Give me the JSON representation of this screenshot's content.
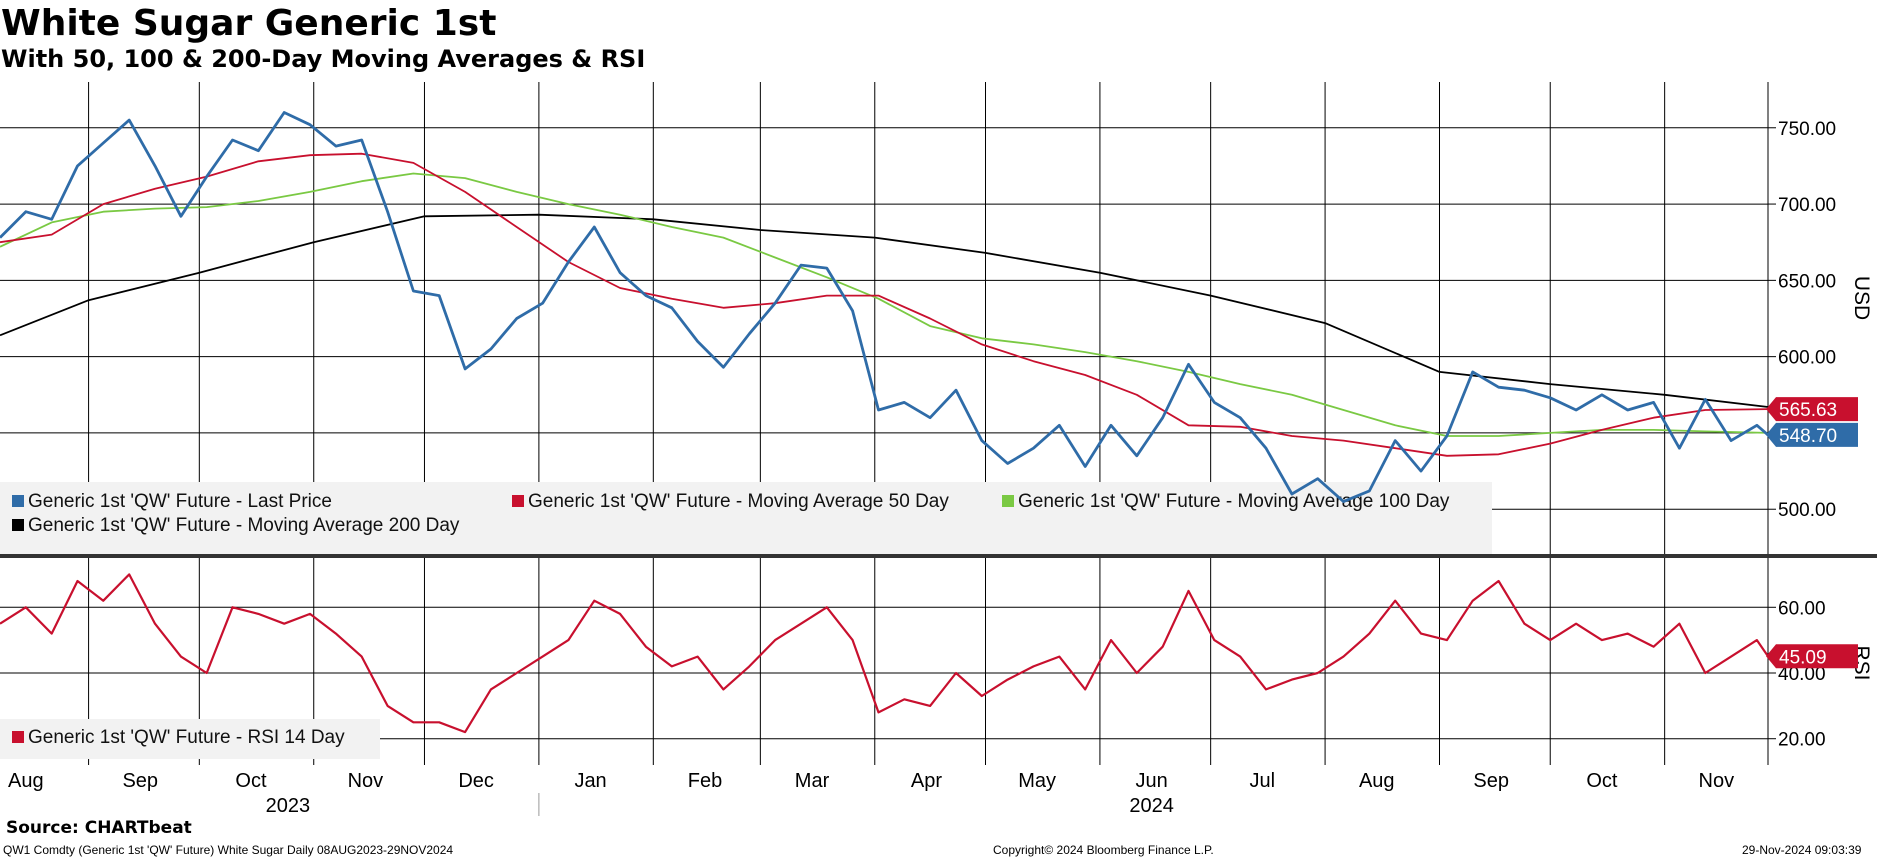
{
  "header": {
    "title": "White Sugar Generic 1st",
    "subtitle": "With 50, 100 & 200-Day Moving Averages & RSI"
  },
  "footer": {
    "source": "Source: CHARTbeat",
    "ticker_line": "QW1 Comdty (Generic 1st 'QW' Future) White Sugar  Daily 08AUG2023-29NOV2024",
    "copyright": "Copyright© 2024 Bloomberg Finance L.P.",
    "timestamp": "29-Nov-2024 09:03:39"
  },
  "chart_data": [
    {
      "type": "line",
      "panel": "price",
      "ylabel": "USD",
      "ylim": [
        470,
        780
      ],
      "yticks": [
        500,
        550,
        600,
        650,
        700,
        750
      ],
      "ytick_labels": [
        "500.00",
        "550.00",
        "600.00",
        "650.00",
        "700.00",
        "750.00"
      ],
      "x_start": "2023-08-08",
      "x_end": "2024-11-29",
      "month_ticks": [
        {
          "label": "Aug",
          "date": "2023-08-15"
        },
        {
          "label": "Sep",
          "date": "2023-09-15"
        },
        {
          "label": "Oct",
          "date": "2023-10-15"
        },
        {
          "label": "Nov",
          "date": "2023-11-15"
        },
        {
          "label": "Dec",
          "date": "2023-12-15"
        },
        {
          "label": "Jan",
          "date": "2024-01-15"
        },
        {
          "label": "Feb",
          "date": "2024-02-15"
        },
        {
          "label": "Mar",
          "date": "2024-03-15"
        },
        {
          "label": "Apr",
          "date": "2024-04-15"
        },
        {
          "label": "May",
          "date": "2024-05-15"
        },
        {
          "label": "Jun",
          "date": "2024-06-15"
        },
        {
          "label": "Jul",
          "date": "2024-07-15"
        },
        {
          "label": "Aug",
          "date": "2024-08-15"
        },
        {
          "label": "Sep",
          "date": "2024-09-15"
        },
        {
          "label": "Oct",
          "date": "2024-10-15"
        },
        {
          "label": "Nov",
          "date": "2024-11-15"
        }
      ],
      "year_labels": [
        {
          "label": "2023",
          "date": "2023-10-25"
        },
        {
          "label": "2024",
          "date": "2024-06-15"
        }
      ],
      "year_separator": "2024-01-01",
      "grid": true,
      "legend_position": "bottom-left",
      "series": [
        {
          "name": "Generic 1st 'QW' Future - Last Price",
          "color": "#2f6ca8",
          "last_label": "548.70",
          "x": [
            "2023-08-08",
            "2023-08-15",
            "2023-08-22",
            "2023-08-29",
            "2023-09-05",
            "2023-09-12",
            "2023-09-19",
            "2023-09-26",
            "2023-10-03",
            "2023-10-10",
            "2023-10-17",
            "2023-10-24",
            "2023-10-31",
            "2023-11-07",
            "2023-11-14",
            "2023-11-21",
            "2023-11-28",
            "2023-12-05",
            "2023-12-12",
            "2023-12-19",
            "2023-12-26",
            "2024-01-02",
            "2024-01-09",
            "2024-01-16",
            "2024-01-23",
            "2024-01-30",
            "2024-02-06",
            "2024-02-13",
            "2024-02-20",
            "2024-02-27",
            "2024-03-05",
            "2024-03-12",
            "2024-03-19",
            "2024-03-26",
            "2024-04-02",
            "2024-04-09",
            "2024-04-16",
            "2024-04-23",
            "2024-04-30",
            "2024-05-07",
            "2024-05-14",
            "2024-05-21",
            "2024-05-28",
            "2024-06-04",
            "2024-06-11",
            "2024-06-18",
            "2024-06-25",
            "2024-07-02",
            "2024-07-09",
            "2024-07-16",
            "2024-07-23",
            "2024-07-30",
            "2024-08-06",
            "2024-08-13",
            "2024-08-20",
            "2024-08-27",
            "2024-09-03",
            "2024-09-10",
            "2024-09-17",
            "2024-09-24",
            "2024-10-01",
            "2024-10-08",
            "2024-10-15",
            "2024-10-22",
            "2024-10-29",
            "2024-11-05",
            "2024-11-12",
            "2024-11-19",
            "2024-11-26",
            "2024-11-29"
          ],
          "values": [
            678,
            695,
            690,
            725,
            740,
            755,
            725,
            692,
            718,
            742,
            735,
            760,
            752,
            738,
            742,
            695,
            643,
            640,
            592,
            605,
            625,
            635,
            662,
            685,
            655,
            640,
            632,
            610,
            593,
            615,
            635,
            660,
            658,
            630,
            565,
            570,
            560,
            578,
            545,
            530,
            540,
            555,
            528,
            555,
            535,
            560,
            595,
            570,
            560,
            540,
            510,
            520,
            505,
            512,
            545,
            525,
            548,
            590,
            580,
            578,
            573,
            565,
            575,
            565,
            570,
            540,
            572,
            545,
            555,
            548.7
          ]
        },
        {
          "name": "Generic 1st 'QW' Future - Moving Average 50 Day",
          "color": "#c8102e",
          "last_label": "565.63",
          "x": [
            "2023-08-08",
            "2023-08-22",
            "2023-09-05",
            "2023-09-19",
            "2023-10-03",
            "2023-10-17",
            "2023-10-31",
            "2023-11-14",
            "2023-11-28",
            "2023-12-12",
            "2023-12-26",
            "2024-01-09",
            "2024-01-23",
            "2024-02-06",
            "2024-02-20",
            "2024-03-05",
            "2024-03-19",
            "2024-04-02",
            "2024-04-16",
            "2024-04-30",
            "2024-05-14",
            "2024-05-28",
            "2024-06-11",
            "2024-06-25",
            "2024-07-09",
            "2024-07-23",
            "2024-08-06",
            "2024-08-20",
            "2024-09-03",
            "2024-09-17",
            "2024-10-01",
            "2024-10-15",
            "2024-10-29",
            "2024-11-12",
            "2024-11-29"
          ],
          "values": [
            675,
            680,
            700,
            710,
            718,
            728,
            732,
            733,
            727,
            708,
            685,
            662,
            645,
            638,
            632,
            635,
            640,
            640,
            625,
            608,
            597,
            588,
            575,
            555,
            554,
            548,
            545,
            540,
            535,
            536,
            543,
            552,
            560,
            565,
            565.63
          ]
        },
        {
          "name": "Generic 1st 'QW' Future - Moving Average 100 Day",
          "color": "#7ac943",
          "x": [
            "2023-08-08",
            "2023-08-22",
            "2023-09-05",
            "2023-09-19",
            "2023-10-03",
            "2023-10-17",
            "2023-10-31",
            "2023-11-14",
            "2023-11-28",
            "2023-12-12",
            "2023-12-26",
            "2024-01-09",
            "2024-01-23",
            "2024-02-06",
            "2024-02-20",
            "2024-03-05",
            "2024-03-19",
            "2024-04-02",
            "2024-04-16",
            "2024-04-30",
            "2024-05-14",
            "2024-05-28",
            "2024-06-11",
            "2024-06-25",
            "2024-07-09",
            "2024-07-23",
            "2024-08-06",
            "2024-08-20",
            "2024-09-03",
            "2024-09-17",
            "2024-10-01",
            "2024-10-15",
            "2024-10-29",
            "2024-11-12",
            "2024-11-29"
          ],
          "values": [
            672,
            688,
            695,
            697,
            698,
            702,
            708,
            715,
            720,
            717,
            708,
            700,
            693,
            685,
            678,
            665,
            652,
            638,
            620,
            612,
            608,
            603,
            597,
            590,
            582,
            575,
            565,
            555,
            548,
            548,
            550,
            552,
            552,
            551,
            550
          ]
        },
        {
          "name": "Generic 1st 'QW' Future - Moving Average 200 Day",
          "color": "#000000",
          "x": [
            "2023-08-08",
            "2023-09-01",
            "2023-10-01",
            "2023-11-01",
            "2023-12-01",
            "2024-01-01",
            "2024-02-01",
            "2024-03-01",
            "2024-04-01",
            "2024-05-01",
            "2024-06-01",
            "2024-07-01",
            "2024-08-01",
            "2024-09-01",
            "2024-10-01",
            "2024-11-01",
            "2024-11-29"
          ],
          "values": [
            614,
            637,
            655,
            675,
            692,
            693,
            690,
            683,
            678,
            668,
            655,
            640,
            622,
            590,
            582,
            575,
            567
          ]
        }
      ]
    },
    {
      "type": "line",
      "panel": "rsi",
      "ylabel": "RSI",
      "ylim": [
        12,
        75
      ],
      "yticks": [
        20,
        40,
        60
      ],
      "ytick_labels": [
        "20.00",
        "40.00",
        "60.00"
      ],
      "grid": true,
      "legend_position": "bottom-left",
      "series": [
        {
          "name": "Generic 1st 'QW' Future - RSI 14 Day",
          "color": "#c8102e",
          "last_label": "45.09",
          "x": [
            "2023-08-08",
            "2023-08-15",
            "2023-08-22",
            "2023-08-29",
            "2023-09-05",
            "2023-09-12",
            "2023-09-19",
            "2023-09-26",
            "2023-10-03",
            "2023-10-10",
            "2023-10-17",
            "2023-10-24",
            "2023-10-31",
            "2023-11-07",
            "2023-11-14",
            "2023-11-21",
            "2023-11-28",
            "2023-12-05",
            "2023-12-12",
            "2023-12-19",
            "2023-12-26",
            "2024-01-02",
            "2024-01-09",
            "2024-01-16",
            "2024-01-23",
            "2024-01-30",
            "2024-02-06",
            "2024-02-13",
            "2024-02-20",
            "2024-02-27",
            "2024-03-05",
            "2024-03-12",
            "2024-03-19",
            "2024-03-26",
            "2024-04-02",
            "2024-04-09",
            "2024-04-16",
            "2024-04-23",
            "2024-04-30",
            "2024-05-07",
            "2024-05-14",
            "2024-05-21",
            "2024-05-28",
            "2024-06-04",
            "2024-06-11",
            "2024-06-18",
            "2024-06-25",
            "2024-07-02",
            "2024-07-09",
            "2024-07-16",
            "2024-07-23",
            "2024-07-30",
            "2024-08-06",
            "2024-08-13",
            "2024-08-20",
            "2024-08-27",
            "2024-09-03",
            "2024-09-10",
            "2024-09-17",
            "2024-09-24",
            "2024-10-01",
            "2024-10-08",
            "2024-10-15",
            "2024-10-22",
            "2024-10-29",
            "2024-11-05",
            "2024-11-12",
            "2024-11-19",
            "2024-11-26",
            "2024-11-29"
          ],
          "values": [
            55,
            60,
            52,
            68,
            62,
            70,
            55,
            45,
            40,
            60,
            58,
            55,
            58,
            52,
            45,
            30,
            25,
            25,
            22,
            35,
            40,
            45,
            50,
            62,
            58,
            48,
            42,
            45,
            35,
            42,
            50,
            55,
            60,
            50,
            28,
            32,
            30,
            40,
            33,
            38,
            42,
            45,
            35,
            50,
            40,
            48,
            65,
            50,
            45,
            35,
            38,
            40,
            45,
            52,
            62,
            52,
            50,
            62,
            68,
            55,
            50,
            55,
            50,
            52,
            48,
            55,
            40,
            45,
            50,
            45.09
          ]
        }
      ]
    }
  ]
}
